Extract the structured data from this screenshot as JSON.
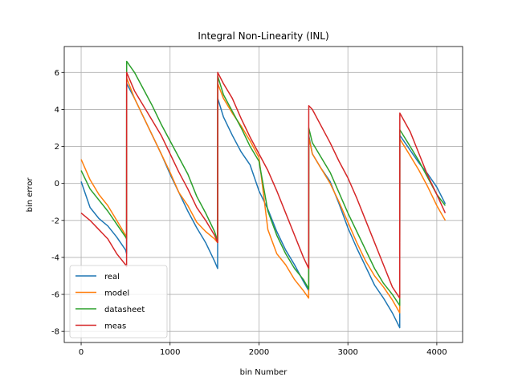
{
  "chart_data": {
    "type": "line",
    "title": "Integral Non-Linearity (INL)",
    "xlabel": "bin Number",
    "ylabel": "bin error",
    "xlim": [
      -190,
      4290
    ],
    "ylim": [
      -8.6,
      7.4
    ],
    "xticks": [
      0,
      1000,
      2000,
      3000,
      4000
    ],
    "yticks": [
      -8,
      -6,
      -4,
      -2,
      0,
      2,
      4,
      6
    ],
    "grid": true,
    "legend_position": "lower-left",
    "series": [
      {
        "name": "real",
        "color": "#1f77b4",
        "x": [
          0,
          100,
          200,
          300,
          400,
          500,
          511,
          512,
          600,
          700,
          800,
          900,
          1000,
          1100,
          1200,
          1300,
          1400,
          1500,
          1535,
          1536,
          1600,
          1700,
          1800,
          1900,
          2000,
          2100,
          2200,
          2300,
          2400,
          2500,
          2559,
          2560,
          2600,
          2700,
          2800,
          2900,
          3000,
          3100,
          3200,
          3300,
          3400,
          3500,
          3583,
          3584,
          3700,
          3800,
          3900,
          4000,
          4095
        ],
        "y": [
          0.1,
          -1.3,
          -1.9,
          -2.3,
          -2.9,
          -3.6,
          -3.8,
          5.4,
          4.6,
          3.6,
          2.6,
          1.6,
          0.5,
          -0.5,
          -1.5,
          -2.4,
          -3.2,
          -4.2,
          -4.6,
          4.6,
          3.6,
          2.6,
          1.7,
          1.0,
          -0.4,
          -1.4,
          -2.6,
          -3.6,
          -4.4,
          -5.3,
          -5.8,
          2.6,
          1.6,
          0.8,
          0.1,
          -1.1,
          -2.4,
          -3.5,
          -4.5,
          -5.5,
          -6.2,
          -7.0,
          -7.8,
          2.6,
          1.8,
          1.1,
          0.5,
          -0.2,
          -1.1
        ]
      },
      {
        "name": "model",
        "color": "#ff7f0e",
        "x": [
          0,
          100,
          200,
          300,
          400,
          500,
          511,
          512,
          600,
          700,
          800,
          900,
          1000,
          1100,
          1200,
          1300,
          1400,
          1500,
          1535,
          1536,
          1600,
          1700,
          1800,
          1900,
          2000,
          2100,
          2200,
          2300,
          2400,
          2500,
          2559,
          2560,
          2600,
          2700,
          2800,
          2900,
          3000,
          3100,
          3200,
          3300,
          3400,
          3500,
          3583,
          3584,
          3700,
          3800,
          3900,
          4000,
          4095
        ],
        "y": [
          1.3,
          0.2,
          -0.6,
          -1.2,
          -2.0,
          -2.8,
          -3.0,
          5.7,
          4.6,
          3.6,
          2.6,
          1.6,
          0.6,
          -0.5,
          -1.2,
          -2.1,
          -2.6,
          -3.0,
          -3.2,
          5.4,
          4.6,
          3.8,
          3.1,
          2.3,
          1.4,
          -2.5,
          -3.8,
          -4.4,
          -5.2,
          -5.8,
          -6.2,
          2.5,
          1.6,
          0.8,
          0.0,
          -1.0,
          -2.1,
          -3.2,
          -4.2,
          -5.0,
          -5.6,
          -6.3,
          -7.0,
          2.4,
          1.5,
          0.7,
          -0.2,
          -1.2,
          -2.0
        ]
      },
      {
        "name": "datasheet",
        "color": "#2ca02c",
        "x": [
          0,
          100,
          200,
          300,
          400,
          500,
          511,
          512,
          600,
          700,
          800,
          900,
          1000,
          1100,
          1200,
          1300,
          1400,
          1500,
          1535,
          1536,
          1600,
          1700,
          1800,
          1900,
          2000,
          2100,
          2200,
          2300,
          2400,
          2500,
          2559,
          2560,
          2600,
          2700,
          2800,
          2900,
          3000,
          3100,
          3200,
          3300,
          3400,
          3500,
          3583,
          3584,
          3700,
          3800,
          3900,
          4000,
          4095
        ],
        "y": [
          0.7,
          -0.3,
          -0.9,
          -1.5,
          -2.2,
          -2.9,
          -3.0,
          6.6,
          6.0,
          5.1,
          4.2,
          3.2,
          2.3,
          1.4,
          0.5,
          -0.7,
          -1.6,
          -2.6,
          -3.1,
          5.8,
          4.8,
          3.9,
          3.0,
          2.0,
          1.2,
          -1.5,
          -2.8,
          -3.8,
          -4.6,
          -5.2,
          -5.7,
          3.0,
          2.2,
          1.4,
          0.6,
          -0.5,
          -1.6,
          -2.6,
          -3.6,
          -4.6,
          -5.4,
          -6.0,
          -6.6,
          2.9,
          2.0,
          1.2,
          0.3,
          -0.6,
          -1.2
        ]
      },
      {
        "name": "meas",
        "color": "#d62728",
        "x": [
          0,
          100,
          200,
          300,
          400,
          500,
          511,
          512,
          600,
          700,
          800,
          900,
          1000,
          1100,
          1200,
          1300,
          1400,
          1500,
          1535,
          1536,
          1600,
          1700,
          1800,
          1900,
          2000,
          2100,
          2200,
          2300,
          2400,
          2500,
          2559,
          2560,
          2600,
          2700,
          2800,
          2900,
          3000,
          3100,
          3200,
          3300,
          3400,
          3500,
          3583,
          3584,
          3700,
          3800,
          3900,
          4000,
          4095
        ],
        "y": [
          -1.6,
          -2.0,
          -2.5,
          -3.0,
          -3.8,
          -4.4,
          -4.5,
          6.0,
          5.0,
          4.2,
          3.4,
          2.6,
          1.6,
          0.6,
          -0.3,
          -1.3,
          -2.0,
          -2.8,
          -3.2,
          6.0,
          5.4,
          4.6,
          3.5,
          2.5,
          1.6,
          0.7,
          -0.4,
          -1.6,
          -2.8,
          -4.0,
          -4.6,
          4.2,
          4.0,
          3.1,
          2.2,
          1.2,
          0.3,
          -0.8,
          -2.0,
          -3.2,
          -4.4,
          -5.6,
          -6.2,
          3.8,
          2.8,
          1.6,
          0.4,
          -0.6,
          -1.6
        ]
      }
    ]
  }
}
